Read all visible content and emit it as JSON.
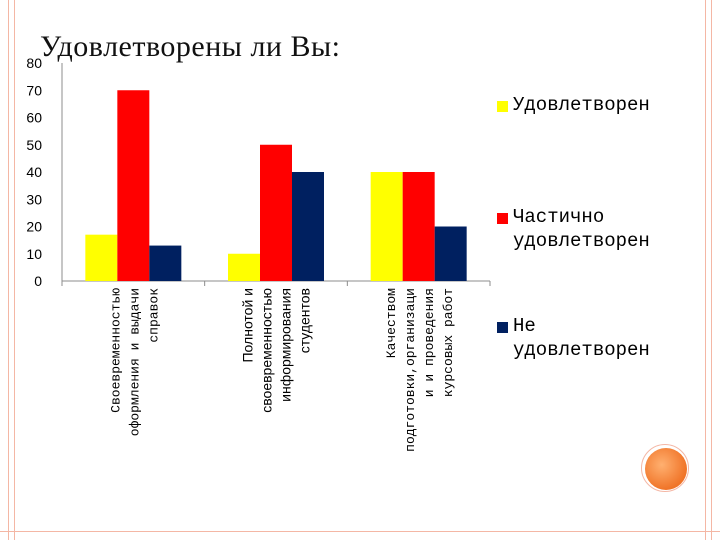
{
  "slide_title": "Удовлетворены ли Вы:",
  "chart_data": {
    "type": "bar",
    "categories": [
      "Своевременностью оформления и выдачи справок",
      "Полнотой и своевременностью информирования студентов",
      "Качеством подготовки,организации и проведения курсовых работ"
    ],
    "category_lines": [
      [
        "Своевременностью",
        "оформления и выдачи",
        "справок"
      ],
      [
        "Полнотой и",
        "своевременностью",
        "информирования",
        "студентов"
      ],
      [
        "Качеством",
        "подготовки,организаци",
        "и и проведения",
        "курсовых работ"
      ]
    ],
    "series": [
      {
        "name": "Удовлетворен",
        "values": [
          17,
          10,
          40
        ],
        "color": "#ffff00"
      },
      {
        "name": "Частично удовлетворен",
        "values": [
          70,
          50,
          40
        ],
        "color": "#ff0000"
      },
      {
        "name": "Не удовлетворен",
        "values": [
          13,
          40,
          20
        ],
        "color": "#002060"
      }
    ],
    "ylim": [
      0,
      80
    ],
    "yticks": [
      0,
      10,
      20,
      30,
      40,
      50,
      60,
      70,
      80
    ],
    "grid": false,
    "legend_position": "right"
  }
}
